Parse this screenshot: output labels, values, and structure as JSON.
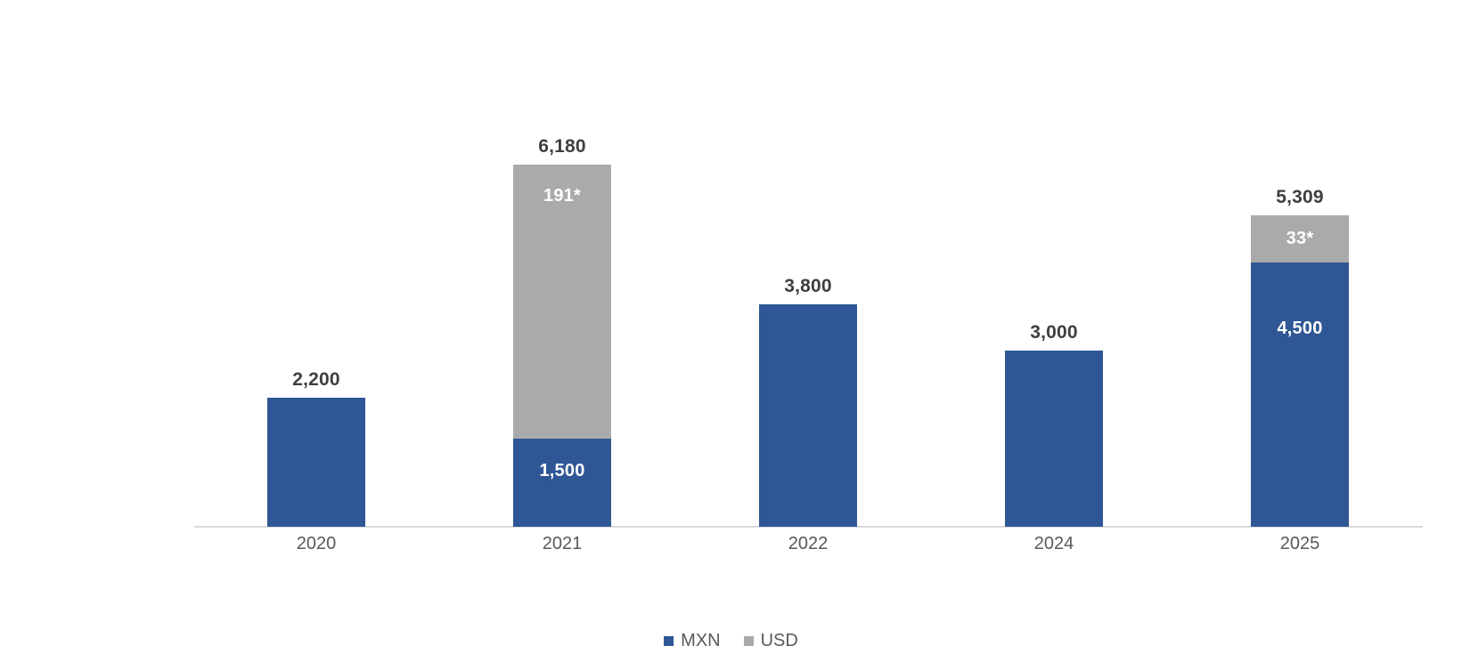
{
  "chart_data": {
    "type": "bar",
    "stacked": true,
    "title": "",
    "categories": [
      "2020",
      "2021",
      "2022",
      "2024",
      "2025"
    ],
    "series": [
      {
        "name": "MXN",
        "color": "#2f5795",
        "values": [
          2200,
          1500,
          3800,
          3000,
          4500
        ],
        "segment_labels": [
          "",
          "1,500",
          "",
          "",
          "4,500"
        ]
      },
      {
        "name": "USD",
        "color": "#a9aaab",
        "values": [
          0,
          4680,
          0,
          0,
          809
        ],
        "segment_labels": [
          "",
          "191*",
          "",
          "",
          "33*"
        ]
      }
    ],
    "total_labels": [
      "2,200",
      "6,180",
      "3,800",
      "3,000",
      "5,309"
    ],
    "legend": {
      "position": "bottom",
      "entries": [
        {
          "label": "MXN",
          "color": "#2f5795"
        },
        {
          "label": "USD",
          "color": "#a9aaab"
        }
      ]
    },
    "axis": {
      "baseline_color": "#d9d9d9",
      "tick_label_color": "#595959",
      "total_label_color": "#3f3f3f",
      "inner_label_color": "#ffffff"
    },
    "grid": false,
    "background": "#ffffff",
    "ylim": [
      0,
      6500
    ]
  }
}
